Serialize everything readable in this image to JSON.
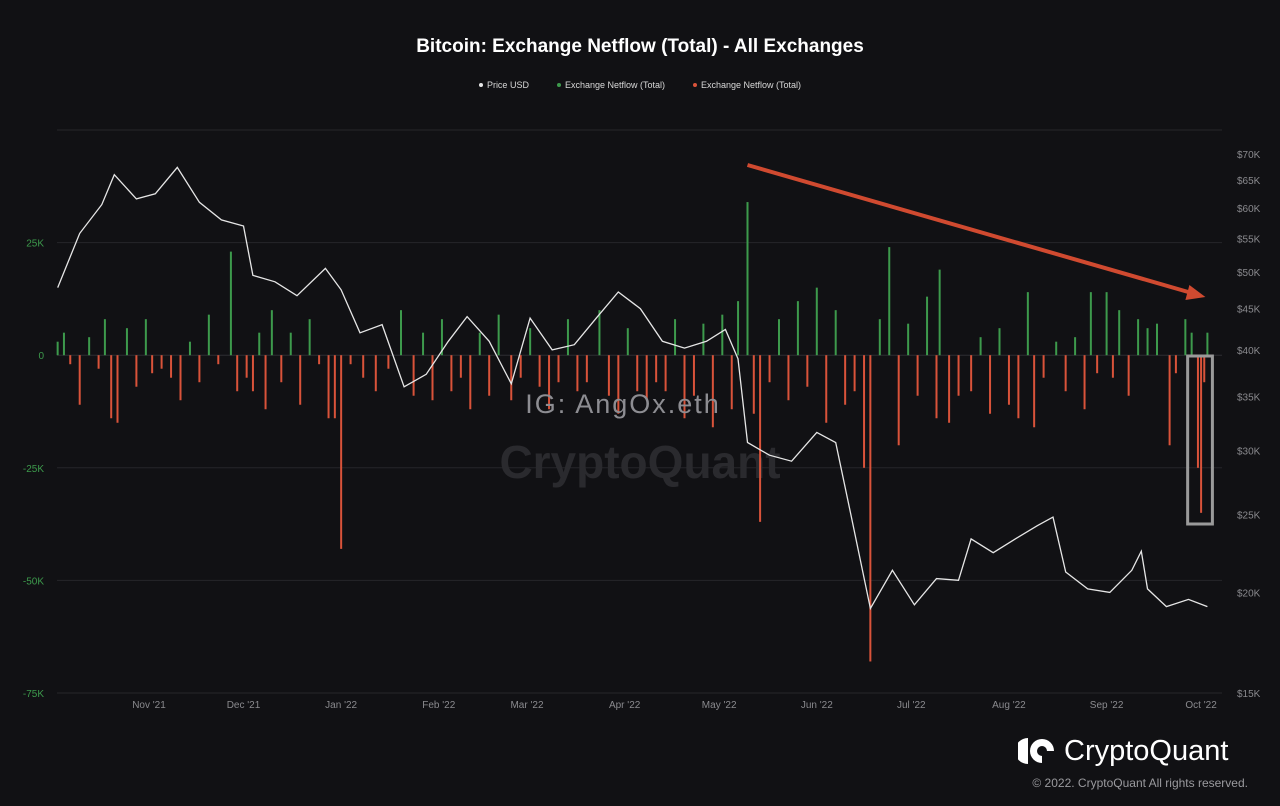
{
  "chart_data": {
    "type": "bar+line",
    "title": "Bitcoin: Exchange Netflow (Total) - All Exchanges",
    "legend": [
      {
        "name": "Price USD",
        "color": "#e6e6e6"
      },
      {
        "name": "Exchange Netflow (Total)",
        "color": "#3d9a4c"
      },
      {
        "name": "Exchange Netflow (Total)",
        "color": "#d9533a"
      }
    ],
    "legend_placement": "top-center",
    "x_ticks": [
      "Nov '21",
      "Dec '21",
      "Jan '22",
      "Feb '22",
      "Mar '22",
      "Apr '22",
      "May '22",
      "Jun '22",
      "Jul '22",
      "Aug '22",
      "Sep '22",
      "Oct '22"
    ],
    "x_tick_dates": [
      "2021-11-01",
      "2021-12-01",
      "2022-01-01",
      "2022-02-01",
      "2022-03-01",
      "2022-04-01",
      "2022-05-01",
      "2022-06-01",
      "2022-07-01",
      "2022-08-01",
      "2022-09-01",
      "2022-10-01"
    ],
    "left_axis": {
      "ticks": [
        "25K",
        "0",
        "-25K",
        "-50K",
        "-75K"
      ],
      "tick_values": [
        25000,
        0,
        -25000,
        -50000,
        -75000
      ],
      "ylim": [
        -75000,
        50000
      ]
    },
    "right_axis": {
      "scale": "log",
      "ticks": [
        "$70K",
        "$65K",
        "$60K",
        "$55K",
        "$50K",
        "$45K",
        "$40K",
        "$35K",
        "$30K",
        "$25K",
        "$20K",
        "$15K"
      ],
      "tick_values": [
        70000,
        65000,
        60000,
        55000,
        50000,
        45000,
        40000,
        35000,
        30000,
        25000,
        20000,
        15000
      ],
      "ylim": [
        15000,
        75000
      ]
    },
    "grid": true,
    "price_usd": [
      [
        "2021-10-03",
        47800
      ],
      [
        "2021-10-10",
        55800
      ],
      [
        "2021-10-17",
        60600
      ],
      [
        "2021-10-21",
        66000
      ],
      [
        "2021-10-28",
        61600
      ],
      [
        "2021-11-03",
        62500
      ],
      [
        "2021-11-10",
        67400
      ],
      [
        "2021-11-17",
        61000
      ],
      [
        "2021-11-24",
        58000
      ],
      [
        "2021-12-01",
        57000
      ],
      [
        "2021-12-04",
        49500
      ],
      [
        "2021-12-11",
        48600
      ],
      [
        "2021-12-18",
        46700
      ],
      [
        "2021-12-27",
        50500
      ],
      [
        "2022-01-01",
        47500
      ],
      [
        "2022-01-07",
        42000
      ],
      [
        "2022-01-14",
        43000
      ],
      [
        "2022-01-21",
        36000
      ],
      [
        "2022-01-28",
        37300
      ],
      [
        "2022-02-04",
        41000
      ],
      [
        "2022-02-10",
        44000
      ],
      [
        "2022-02-17",
        41000
      ],
      [
        "2022-02-24",
        36300
      ],
      [
        "2022-03-02",
        43800
      ],
      [
        "2022-03-09",
        40000
      ],
      [
        "2022-03-16",
        40600
      ],
      [
        "2022-03-23",
        43800
      ],
      [
        "2022-03-30",
        47200
      ],
      [
        "2022-04-06",
        45000
      ],
      [
        "2022-04-13",
        41000
      ],
      [
        "2022-04-20",
        40200
      ],
      [
        "2022-04-27",
        41000
      ],
      [
        "2022-05-03",
        42400
      ],
      [
        "2022-05-07",
        39000
      ],
      [
        "2022-05-10",
        30700
      ],
      [
        "2022-05-17",
        29600
      ],
      [
        "2022-05-24",
        29100
      ],
      [
        "2022-06-01",
        31600
      ],
      [
        "2022-06-07",
        30700
      ],
      [
        "2022-06-12",
        24800
      ],
      [
        "2022-06-18",
        19100
      ],
      [
        "2022-06-25",
        21300
      ],
      [
        "2022-07-02",
        19300
      ],
      [
        "2022-07-09",
        20800
      ],
      [
        "2022-07-16",
        20700
      ],
      [
        "2022-07-20",
        23300
      ],
      [
        "2022-07-27",
        22400
      ],
      [
        "2022-08-03",
        23300
      ],
      [
        "2022-08-10",
        24200
      ],
      [
        "2022-08-15",
        24800
      ],
      [
        "2022-08-19",
        21200
      ],
      [
        "2022-08-26",
        20200
      ],
      [
        "2022-09-02",
        20000
      ],
      [
        "2022-09-09",
        21300
      ],
      [
        "2022-09-12",
        22500
      ],
      [
        "2022-09-14",
        20200
      ],
      [
        "2022-09-20",
        19200
      ],
      [
        "2022-09-27",
        19600
      ],
      [
        "2022-10-03",
        19200
      ]
    ],
    "exchange_netflow": [
      [
        "2021-10-03",
        3000
      ],
      [
        "2021-10-05",
        5000
      ],
      [
        "2021-10-07",
        -2000
      ],
      [
        "2021-10-10",
        -11000
      ],
      [
        "2021-10-13",
        4000
      ],
      [
        "2021-10-16",
        -3000
      ],
      [
        "2021-10-18",
        8000
      ],
      [
        "2021-10-20",
        -14000
      ],
      [
        "2021-10-22",
        -15000
      ],
      [
        "2021-10-25",
        6000
      ],
      [
        "2021-10-28",
        -7000
      ],
      [
        "2021-10-31",
        8000
      ],
      [
        "2021-11-02",
        -4000
      ],
      [
        "2021-11-05",
        -3000
      ],
      [
        "2021-11-08",
        -5000
      ],
      [
        "2021-11-11",
        -10000
      ],
      [
        "2021-11-14",
        3000
      ],
      [
        "2021-11-17",
        -6000
      ],
      [
        "2021-11-20",
        9000
      ],
      [
        "2021-11-23",
        -2000
      ],
      [
        "2021-11-27",
        23000
      ],
      [
        "2021-11-29",
        -8000
      ],
      [
        "2021-12-02",
        -5000
      ],
      [
        "2021-12-04",
        -8000
      ],
      [
        "2021-12-06",
        5000
      ],
      [
        "2021-12-08",
        -12000
      ],
      [
        "2021-12-10",
        10000
      ],
      [
        "2021-12-13",
        -6000
      ],
      [
        "2021-12-16",
        5000
      ],
      [
        "2021-12-19",
        -11000
      ],
      [
        "2021-12-22",
        8000
      ],
      [
        "2021-12-25",
        -2000
      ],
      [
        "2021-12-28",
        -14000
      ],
      [
        "2021-12-30",
        -14000
      ],
      [
        "2022-01-01",
        -43000
      ],
      [
        "2022-01-04",
        -2000
      ],
      [
        "2022-01-08",
        -5000
      ],
      [
        "2022-01-12",
        -8000
      ],
      [
        "2022-01-16",
        -3000
      ],
      [
        "2022-01-20",
        10000
      ],
      [
        "2022-01-24",
        -9000
      ],
      [
        "2022-01-27",
        5000
      ],
      [
        "2022-01-30",
        -10000
      ],
      [
        "2022-02-02",
        8000
      ],
      [
        "2022-02-05",
        -8000
      ],
      [
        "2022-02-08",
        -5000
      ],
      [
        "2022-02-11",
        -12000
      ],
      [
        "2022-02-14",
        5000
      ],
      [
        "2022-02-17",
        -9000
      ],
      [
        "2022-02-20",
        9000
      ],
      [
        "2022-02-24",
        -10000
      ],
      [
        "2022-02-27",
        -5000
      ],
      [
        "2022-03-02",
        6000
      ],
      [
        "2022-03-05",
        -7000
      ],
      [
        "2022-03-08",
        -12000
      ],
      [
        "2022-03-11",
        -6000
      ],
      [
        "2022-03-14",
        8000
      ],
      [
        "2022-03-17",
        -8000
      ],
      [
        "2022-03-20",
        -6000
      ],
      [
        "2022-03-24",
        10000
      ],
      [
        "2022-03-27",
        -9000
      ],
      [
        "2022-03-30",
        -13000
      ],
      [
        "2022-04-02",
        6000
      ],
      [
        "2022-04-05",
        -8000
      ],
      [
        "2022-04-08",
        -10000
      ],
      [
        "2022-04-11",
        -6000
      ],
      [
        "2022-04-14",
        -8000
      ],
      [
        "2022-04-17",
        8000
      ],
      [
        "2022-04-20",
        -14000
      ],
      [
        "2022-04-23",
        -9000
      ],
      [
        "2022-04-26",
        7000
      ],
      [
        "2022-04-29",
        -16000
      ],
      [
        "2022-05-02",
        9000
      ],
      [
        "2022-05-05",
        -12000
      ],
      [
        "2022-05-07",
        12000
      ],
      [
        "2022-05-10",
        34000
      ],
      [
        "2022-05-12",
        -13000
      ],
      [
        "2022-05-14",
        -37000
      ],
      [
        "2022-05-17",
        -6000
      ],
      [
        "2022-05-20",
        8000
      ],
      [
        "2022-05-23",
        -10000
      ],
      [
        "2022-05-26",
        12000
      ],
      [
        "2022-05-29",
        -7000
      ],
      [
        "2022-06-01",
        15000
      ],
      [
        "2022-06-04",
        -15000
      ],
      [
        "2022-06-07",
        10000
      ],
      [
        "2022-06-10",
        -11000
      ],
      [
        "2022-06-13",
        -8000
      ],
      [
        "2022-06-16",
        -25000
      ],
      [
        "2022-06-18",
        -68000
      ],
      [
        "2022-06-21",
        8000
      ],
      [
        "2022-06-24",
        24000
      ],
      [
        "2022-06-27",
        -20000
      ],
      [
        "2022-06-30",
        7000
      ],
      [
        "2022-07-03",
        -9000
      ],
      [
        "2022-07-06",
        13000
      ],
      [
        "2022-07-09",
        -14000
      ],
      [
        "2022-07-10",
        19000
      ],
      [
        "2022-07-13",
        -15000
      ],
      [
        "2022-07-16",
        -9000
      ],
      [
        "2022-07-20",
        -8000
      ],
      [
        "2022-07-23",
        4000
      ],
      [
        "2022-07-26",
        -13000
      ],
      [
        "2022-07-29",
        6000
      ],
      [
        "2022-08-01",
        -11000
      ],
      [
        "2022-08-04",
        -14000
      ],
      [
        "2022-08-07",
        14000
      ],
      [
        "2022-08-09",
        -16000
      ],
      [
        "2022-08-12",
        -5000
      ],
      [
        "2022-08-16",
        3000
      ],
      [
        "2022-08-19",
        -8000
      ],
      [
        "2022-08-22",
        4000
      ],
      [
        "2022-08-25",
        -12000
      ],
      [
        "2022-08-27",
        14000
      ],
      [
        "2022-08-29",
        -4000
      ],
      [
        "2022-09-01",
        14000
      ],
      [
        "2022-09-03",
        -5000
      ],
      [
        "2022-09-05",
        10000
      ],
      [
        "2022-09-08",
        -9000
      ],
      [
        "2022-09-11",
        8000
      ],
      [
        "2022-09-14",
        6000
      ],
      [
        "2022-09-17",
        7000
      ],
      [
        "2022-09-21",
        -20000
      ],
      [
        "2022-09-23",
        -4000
      ],
      [
        "2022-09-26",
        8000
      ],
      [
        "2022-09-28",
        5000
      ],
      [
        "2022-09-30",
        -25000
      ],
      [
        "2022-10-01",
        -35000
      ],
      [
        "2022-10-02",
        -6000
      ],
      [
        "2022-10-03",
        5000
      ]
    ],
    "positive_color": "#3d9a4c",
    "negative_color": "#d9533a",
    "annotations": {
      "trend_arrow": {
        "from": "2022-05-10",
        "to": "2022-10-03",
        "color": "#d04a30",
        "direction": "down"
      },
      "highlight_box": {
        "from": "2022-09-28",
        "to": "2022-10-03",
        "color": "#9a9a9a"
      }
    }
  },
  "watermarks": {
    "overlay": "IG: AngOx.eth",
    "brand": "CryptoQuant"
  },
  "footer": {
    "brand": "CryptoQuant",
    "copyright": "© 2022. CryptoQuant All rights reserved."
  }
}
